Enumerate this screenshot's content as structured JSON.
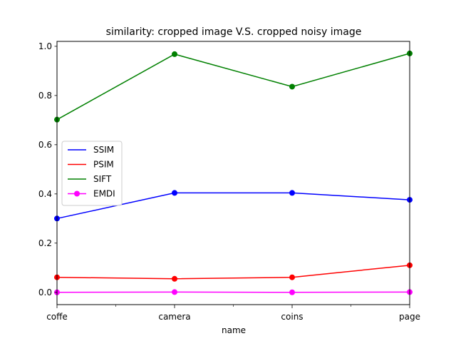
{
  "chart_data": {
    "type": "line",
    "title": "similarity: cropped image V.S. cropped noisy image",
    "xlabel": "name",
    "ylabel": "",
    "categories": [
      "coffe",
      "camera",
      "coins",
      "page"
    ],
    "xlim": [
      0,
      3
    ],
    "ylim": [
      -0.05,
      1.02
    ],
    "yticks": [
      0.0,
      0.2,
      0.4,
      0.6,
      0.8,
      1.0
    ],
    "ytick_labels": [
      "0.0",
      "0.2",
      "0.4",
      "0.6",
      "0.8",
      "1.0"
    ],
    "grid": false,
    "legend_position": "center-left",
    "series": [
      {
        "name": "SSIM",
        "color": "#0000ff",
        "values": [
          0.3,
          0.404,
          0.404,
          0.376
        ]
      },
      {
        "name": "PSIM",
        "color": "#ff0000",
        "values": [
          0.061,
          0.055,
          0.061,
          0.11
        ]
      },
      {
        "name": "SIFT",
        "color": "#008000",
        "values": [
          0.702,
          0.968,
          0.836,
          0.971
        ]
      },
      {
        "name": "EMDI",
        "color": "#ff00ff",
        "values": [
          0.0,
          0.001,
          0.0,
          0.001
        ]
      }
    ]
  }
}
